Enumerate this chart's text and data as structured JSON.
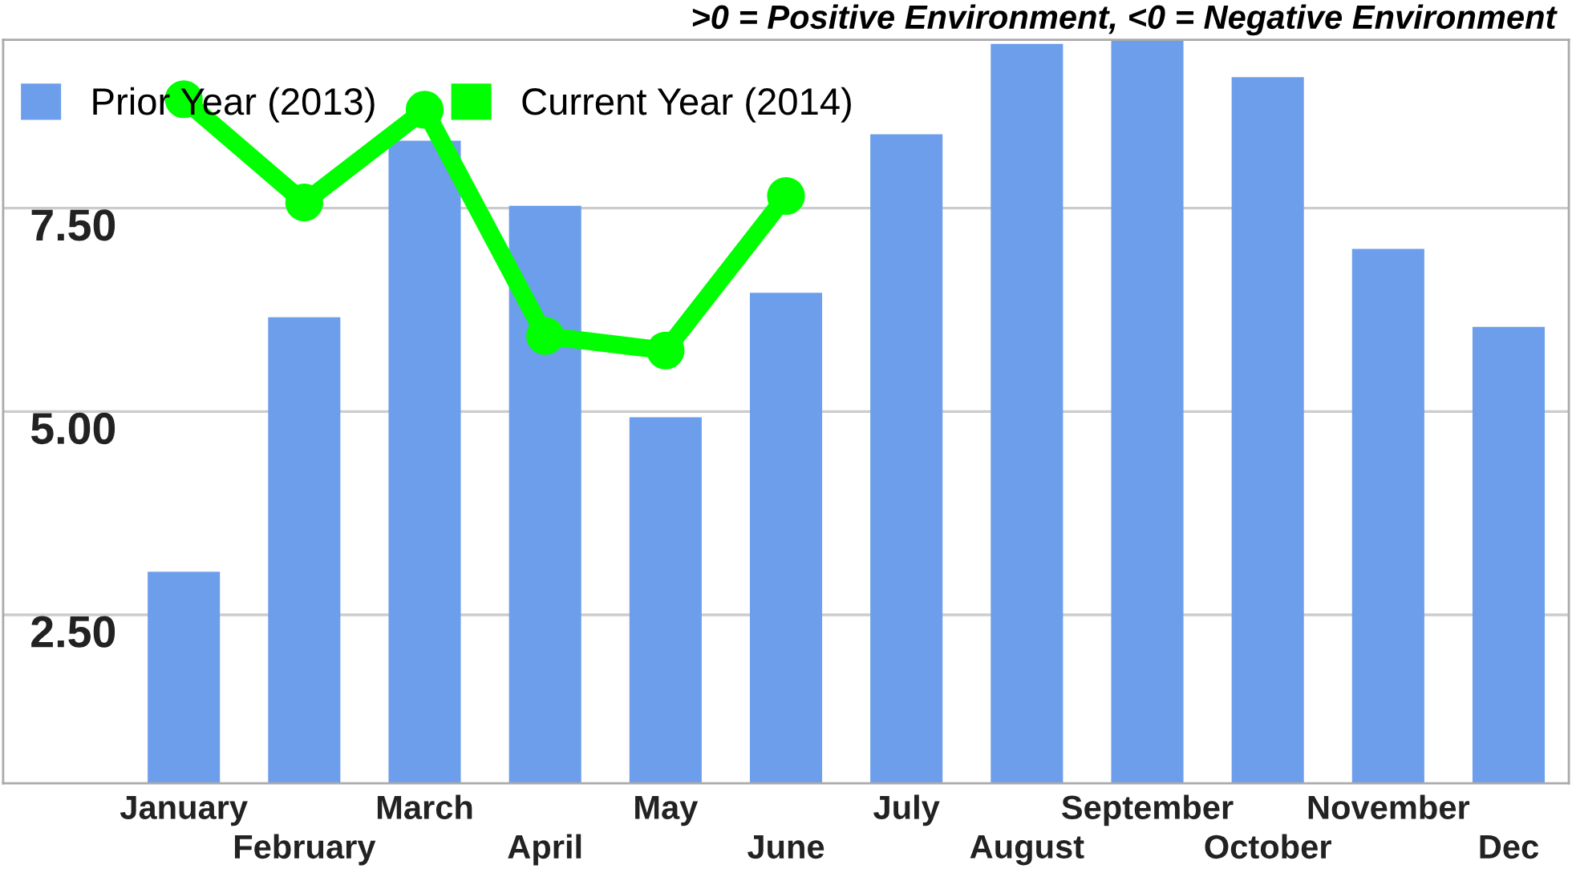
{
  "chart_data": {
    "type": "bar",
    "title": ">0 = Positive Environment, <0 = Negative Environment",
    "categories": [
      "January",
      "February",
      "March",
      "April",
      "May",
      "June",
      "July",
      "August",
      "September",
      "October",
      "November",
      "Dec"
    ],
    "series": [
      {
        "name": "Prior Year (2013)",
        "color": "#6d9eeb",
        "values": [
          3.03,
          6.16,
          8.33,
          7.53,
          4.93,
          6.46,
          8.41,
          9.52,
          9.57,
          9.11,
          7.0,
          6.04
        ]
      },
      {
        "name": "Current Year (2014)",
        "type": "line",
        "color": "#00ff00",
        "values": [
          8.84,
          7.57,
          8.71,
          5.93,
          5.75,
          7.65,
          null,
          null,
          null,
          null,
          null,
          null
        ]
      }
    ],
    "ylim": [
      0.43,
      9.57
    ],
    "yticks": [
      {
        "value": 2.5,
        "label": "2.50"
      },
      {
        "value": 5.0,
        "label": "5.00"
      },
      {
        "value": 7.5,
        "label": "7.50"
      }
    ],
    "grid": "y",
    "legend": "top left",
    "marker": "circle",
    "line_style": "solid"
  }
}
